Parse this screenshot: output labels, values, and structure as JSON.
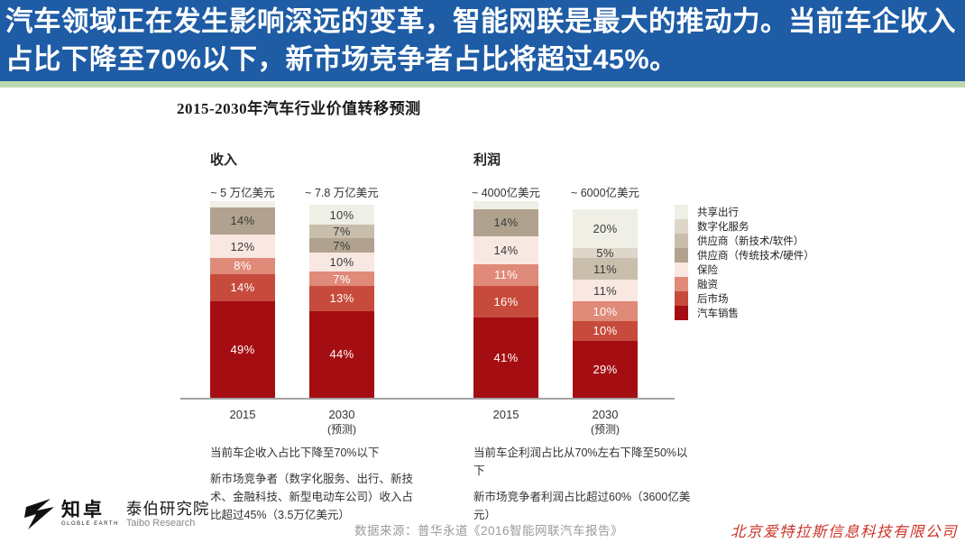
{
  "banner": {
    "text": "汽车领域正在发生影响深远的变革，智能网联是最大的推动力。当前车企收入占比下降至70%以下，新市场竞争者占比将超过45%。",
    "bg_color": "#1e5ca5",
    "accent_strip_color": "#bdd8af"
  },
  "chart_data": {
    "type": "stacked-bar-100pct",
    "title": "2015-2030年汽车行业价值转移预测",
    "unit": "percent of industry value",
    "legend_position": "right",
    "groups": [
      {
        "name": "收入",
        "notes": [
          "当前车企收入占比下降至70%以下",
          "新市场竞争者（数字化服务、出行、新技术、金融科技、新型电动车公司）收入占比超过45%（3.5万亿美元）"
        ]
      },
      {
        "name": "利润",
        "notes": [
          "当前车企利润占比从70%左右下降至50%以下",
          "新市场竞争者利润占比超过60%（3600亿美元）"
        ]
      }
    ],
    "bars": [
      {
        "group": "收入",
        "x_label": "2015",
        "x_sublabel": "",
        "total_label": "~ 5 万亿美元",
        "segments_top_to_bottom": [
          {
            "category": "其他（未标注）",
            "pct": 3,
            "label": "",
            "color": "#f0efe6",
            "text": "#3a3a3a"
          },
          {
            "category": "供应商（传统技术/硬件）",
            "pct": 14,
            "label": "14%",
            "color": "#b0a28e",
            "text": "#3a3a3a"
          },
          {
            "category": "保险",
            "pct": 12,
            "label": "12%",
            "color": "#f9e7e1",
            "text": "#3a3a3a"
          },
          {
            "category": "融资",
            "pct": 8,
            "label": "8%",
            "color": "#e08a79",
            "text": "#ffffff"
          },
          {
            "category": "后市场",
            "pct": 14,
            "label": "14%",
            "color": "#c74b3c",
            "text": "#ffffff"
          },
          {
            "category": "汽车销售",
            "pct": 49,
            "label": "49%",
            "color": "#a40e13",
            "text": "#ffffff"
          }
        ]
      },
      {
        "group": "收入",
        "x_label": "2030",
        "x_sublabel": "(预测)",
        "total_label": "~ 7.8 万亿美元",
        "segments_top_to_bottom": [
          {
            "category": "共享出行",
            "pct": 10,
            "label": "10%",
            "color": "#f0efe6",
            "text": "#3a3a3a"
          },
          {
            "category": "供应商（新技术/软件）",
            "pct": 7,
            "label": "7%",
            "color": "#c9beac",
            "text": "#3a3a3a"
          },
          {
            "category": "供应商（传统技术/硬件）",
            "pct": 7,
            "label": "7%",
            "color": "#b0a28e",
            "text": "#3a3a3a"
          },
          {
            "category": "保险",
            "pct": 10,
            "label": "10%",
            "color": "#f9e7e1",
            "text": "#3a3a3a"
          },
          {
            "category": "融资",
            "pct": 7,
            "label": "7%",
            "color": "#e08a79",
            "text": "#ffffff"
          },
          {
            "category": "后市场",
            "pct": 13,
            "label": "13%",
            "color": "#c74b3c",
            "text": "#ffffff"
          },
          {
            "category": "汽车销售",
            "pct": 44,
            "label": "44%",
            "color": "#a40e13",
            "text": "#ffffff"
          }
        ]
      },
      {
        "group": "利润",
        "x_label": "2015",
        "x_sublabel": "",
        "total_label": "~ 4000亿美元",
        "segments_top_to_bottom": [
          {
            "category": "其他（未标注）",
            "pct": 4,
            "label": "",
            "color": "#f0efe6",
            "text": "#3a3a3a"
          },
          {
            "category": "供应商（传统技术/硬件）",
            "pct": 14,
            "label": "14%",
            "color": "#b0a28e",
            "text": "#3a3a3a"
          },
          {
            "category": "保险",
            "pct": 14,
            "label": "14%",
            "color": "#f9e7e1",
            "text": "#3a3a3a"
          },
          {
            "category": "融资",
            "pct": 11,
            "label": "11%",
            "color": "#e08a79",
            "text": "#ffffff"
          },
          {
            "category": "后市场",
            "pct": 16,
            "label": "16%",
            "color": "#c74b3c",
            "text": "#ffffff"
          },
          {
            "category": "汽车销售",
            "pct": 41,
            "label": "41%",
            "color": "#a40e13",
            "text": "#ffffff"
          }
        ]
      },
      {
        "group": "利润",
        "x_label": "2030",
        "x_sublabel": "(预测)",
        "total_label": "~ 6000亿美元",
        "segments_top_to_bottom": [
          {
            "category": "共享出行",
            "pct": 20,
            "label": "20%",
            "color": "#f0efe6",
            "text": "#3a3a3a"
          },
          {
            "category": "数字化服务",
            "pct": 5,
            "label": "5%",
            "color": "#ded7c9",
            "text": "#3a3a3a"
          },
          {
            "category": "供应商（新技术/软件）",
            "pct": 11,
            "label": "11%",
            "color": "#c9beac",
            "text": "#3a3a3a"
          },
          {
            "category": "保险",
            "pct": 11,
            "label": "11%",
            "color": "#f9e7e1",
            "text": "#3a3a3a"
          },
          {
            "category": "融资",
            "pct": 10,
            "label": "10%",
            "color": "#e08a79",
            "text": "#ffffff"
          },
          {
            "category": "后市场",
            "pct": 10,
            "label": "10%",
            "color": "#c74b3c",
            "text": "#ffffff"
          },
          {
            "category": "汽车销售",
            "pct": 29,
            "label": "29%",
            "color": "#a40e13",
            "text": "#ffffff"
          }
        ]
      }
    ],
    "legend": [
      {
        "label": "共享出行",
        "color": "#f0efe6"
      },
      {
        "label": "数字化服务",
        "color": "#ded7c9"
      },
      {
        "label": "供应商（新技术/软件）",
        "color": "#c9beac"
      },
      {
        "label": "供应商（传统技术/硬件）",
        "color": "#b0a28e"
      },
      {
        "label": "保险",
        "color": "#f9e7e1"
      },
      {
        "label": "融资",
        "color": "#e08a79"
      },
      {
        "label": "后市场",
        "color": "#c74b3c"
      },
      {
        "label": "汽车销售",
        "color": "#a40e13"
      }
    ]
  },
  "footer": {
    "logo": {
      "brand_cn": "知卓",
      "brand_sub": "GLOBLE EARTH",
      "org_cn": "泰伯研究院",
      "org_en": "Taibo Research"
    },
    "source": "数据来源：普华永道《2016智能网联汽车报告》",
    "watermark": "北京爱特拉斯信息科技有限公司"
  }
}
